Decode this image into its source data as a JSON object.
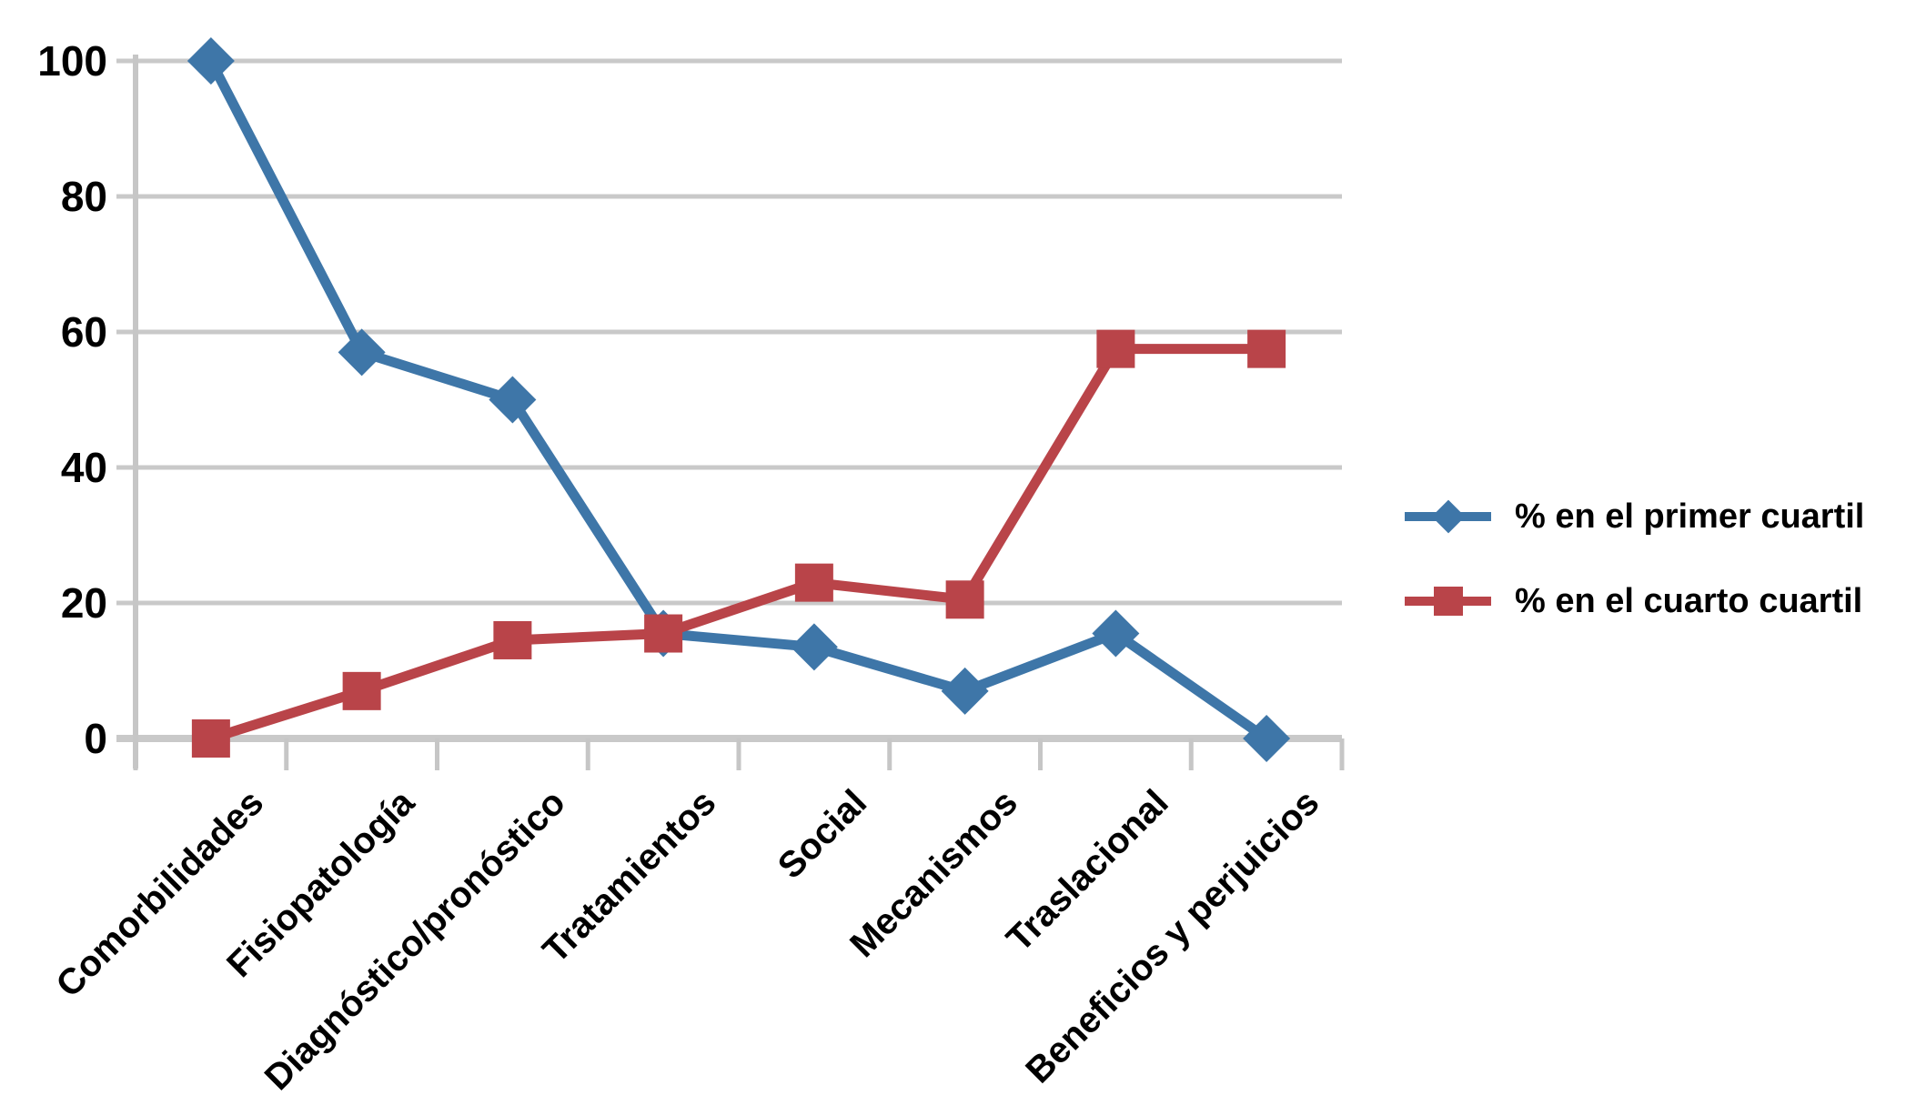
{
  "chart_data": {
    "type": "line",
    "title": "",
    "categories": [
      "Comorbilidades",
      "Fisiopatología",
      "Diagnóstico/pronóstico",
      "Tratamientos",
      "Social",
      "Mecanismos",
      "Traslacional",
      "Beneficios y perjuicios"
    ],
    "series": [
      {
        "name": "% en el primer cuartil",
        "color": "#3E76A8",
        "marker": "diamond",
        "values": [
          100,
          57,
          50,
          15.5,
          13.5,
          7,
          15.5,
          0
        ]
      },
      {
        "name": "% en el cuarto cuartil",
        "color": "#B94449",
        "marker": "square",
        "values": [
          0,
          7,
          14.5,
          15.5,
          23,
          20.5,
          57.5,
          57.5
        ]
      }
    ],
    "xlabel": "",
    "ylabel": "",
    "ylim": [
      0,
      100
    ],
    "yticks": [
      0,
      20,
      40,
      60,
      80,
      100
    ],
    "grid": "horizontal",
    "legend_position": "right"
  },
  "style": {
    "grid_color": "#C9C9C9",
    "axis_color": "#C6C6C6",
    "text_color": "#000000",
    "background": "#FFFFFF"
  }
}
